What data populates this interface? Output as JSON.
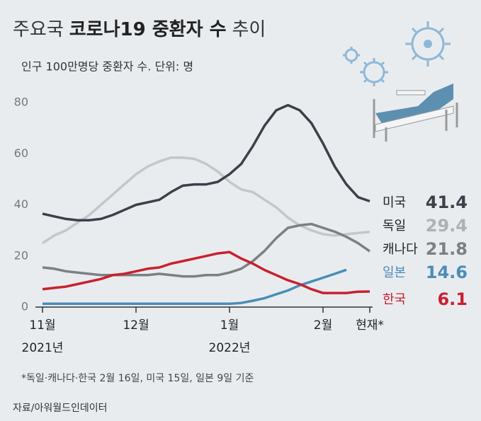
{
  "chart_data": {
    "type": "line",
    "title": [
      "주요국",
      "코로나19 중환자 수",
      "추이"
    ],
    "subtitle": "인구 100만명당 중환자 수. 단위: 명",
    "note": "*독일·캐나다·한국 2월 16일, 미국 15일, 일본 9일 기준",
    "source": "자료/아워월드인데이터",
    "categories": [
      "11월",
      null,
      null,
      null,
      null,
      null,
      null,
      null,
      "12월",
      null,
      null,
      null,
      null,
      null,
      null,
      null,
      "1월",
      null,
      null,
      null,
      null,
      null,
      null,
      null,
      "2월",
      null,
      null,
      null,
      "현재*"
    ],
    "category_years": [
      "2021년",
      null,
      null,
      null,
      null,
      null,
      null,
      null,
      null,
      null,
      null,
      null,
      null,
      null,
      null,
      null,
      "2022년",
      null,
      null,
      null,
      null,
      null,
      null,
      null,
      null,
      null,
      null,
      null,
      null
    ],
    "ylim": [
      0,
      80
    ],
    "yticks": [
      0,
      20,
      40,
      60,
      80
    ],
    "series": [
      {
        "name": "미국",
        "color": "#3b4049",
        "values": [
          36.5,
          35.5,
          34.5,
          34,
          34,
          34.5,
          36,
          38,
          40,
          41,
          42,
          45,
          47.5,
          48,
          48,
          49,
          52,
          56,
          63,
          71,
          77,
          79,
          77,
          72,
          64,
          55,
          48,
          43,
          41.4
        ]
      },
      {
        "name": "독일",
        "color": "#c4c6c9",
        "values": [
          25,
          28,
          30,
          33,
          36,
          40,
          44,
          48,
          52,
          55,
          57,
          58.5,
          58.5,
          58,
          56,
          53,
          49,
          46,
          45,
          42,
          39,
          35,
          32,
          30,
          28.5,
          28,
          28.5,
          29,
          29.4
        ]
      },
      {
        "name": "캐나다",
        "color": "#7c7f84",
        "values": [
          15.5,
          15,
          14,
          13.5,
          13,
          12.5,
          12.5,
          12.5,
          12.5,
          12.5,
          13,
          12.5,
          12,
          12,
          12.5,
          12.5,
          13.5,
          15,
          18,
          22,
          27,
          31,
          32,
          32.5,
          31,
          29.5,
          27.5,
          25,
          21.8
        ]
      },
      {
        "name": "일본",
        "color": "#4a8db8",
        "values": [
          1.3,
          1.3,
          1.3,
          1.3,
          1.3,
          1.3,
          1.3,
          1.3,
          1.3,
          1.3,
          1.3,
          1.3,
          1.3,
          1.3,
          1.3,
          1.3,
          1.3,
          1.6,
          2.5,
          3.5,
          5,
          6.5,
          8.5,
          10,
          11.5,
          13,
          14.6,
          null,
          null
        ]
      },
      {
        "name": "한국",
        "color": "#c9202f",
        "values": [
          7,
          7.5,
          8,
          9,
          10,
          11,
          12.5,
          13,
          14,
          15,
          15.5,
          17,
          18,
          19,
          20,
          21,
          21.5,
          19,
          17,
          14.5,
          12.5,
          10.5,
          9,
          7,
          5.5,
          5.5,
          5.5,
          6,
          6.1
        ]
      }
    ]
  }
}
